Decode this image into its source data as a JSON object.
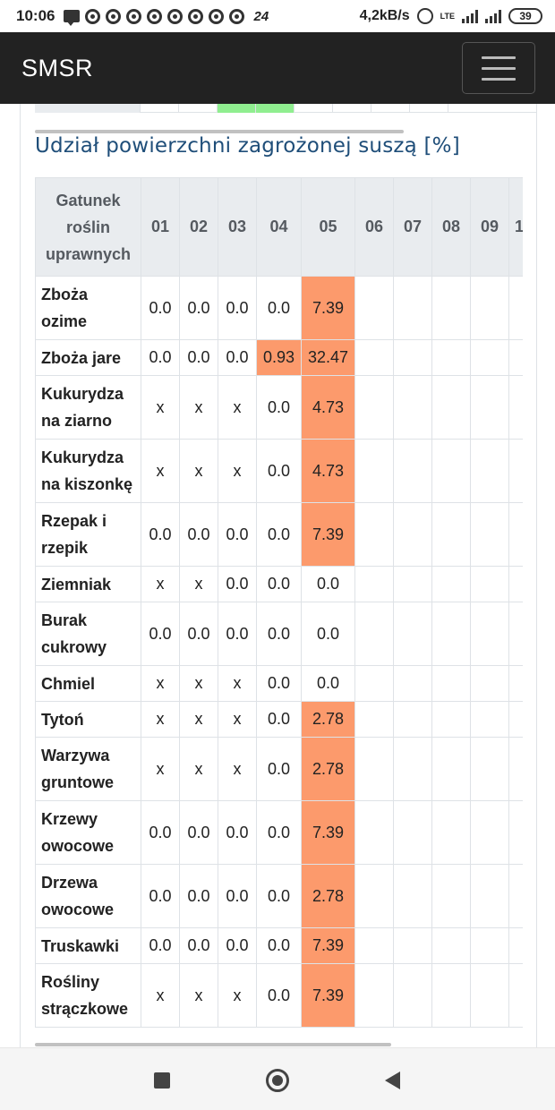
{
  "status_bar": {
    "time": "10:06",
    "notification_count": "24",
    "network_speed": "4,2kB/s",
    "network_type": "LTE",
    "battery": "39"
  },
  "navbar": {
    "brand": "SMSR"
  },
  "section": {
    "title": "Udział powierzchni zagrożonej suszą [%]"
  },
  "colors": {
    "navbar_bg": "#222222",
    "title": "#1f4e79",
    "highlight_drought": "#fc9a6c",
    "header_bg": "#e9ecef"
  },
  "table": {
    "crop_header": [
      "Gatunek",
      "roślin",
      "uprawnych"
    ],
    "months": [
      "01",
      "02",
      "03",
      "04",
      "05",
      "06",
      "07",
      "08",
      "09",
      "1"
    ],
    "rows": [
      {
        "crop": "Zboża ozime",
        "values": [
          "0.0",
          "0.0",
          "0.0",
          "0.0",
          "7.39",
          "",
          "",
          "",
          "",
          ""
        ],
        "highlight": [
          4
        ]
      },
      {
        "crop": "Zboża jare",
        "values": [
          "0.0",
          "0.0",
          "0.0",
          "0.93",
          "32.47",
          "",
          "",
          "",
          "",
          ""
        ],
        "highlight": [
          3,
          4
        ]
      },
      {
        "crop": "Kukurydza na ziarno",
        "values": [
          "x",
          "x",
          "x",
          "0.0",
          "4.73",
          "",
          "",
          "",
          "",
          ""
        ],
        "highlight": [
          4
        ]
      },
      {
        "crop": "Kukurydza na kiszonkę",
        "values": [
          "x",
          "x",
          "x",
          "0.0",
          "4.73",
          "",
          "",
          "",
          "",
          ""
        ],
        "highlight": [
          4
        ]
      },
      {
        "crop": "Rzepak i rzepik",
        "values": [
          "0.0",
          "0.0",
          "0.0",
          "0.0",
          "7.39",
          "",
          "",
          "",
          "",
          ""
        ],
        "highlight": [
          4
        ]
      },
      {
        "crop": "Ziemniak",
        "values": [
          "x",
          "x",
          "0.0",
          "0.0",
          "0.0",
          "",
          "",
          "",
          "",
          ""
        ],
        "highlight": []
      },
      {
        "crop": "Burak cukrowy",
        "values": [
          "0.0",
          "0.0",
          "0.0",
          "0.0",
          "0.0",
          "",
          "",
          "",
          "",
          ""
        ],
        "highlight": []
      },
      {
        "crop": "Chmiel",
        "values": [
          "x",
          "x",
          "x",
          "0.0",
          "0.0",
          "",
          "",
          "",
          "",
          ""
        ],
        "highlight": []
      },
      {
        "crop": "Tytoń",
        "values": [
          "x",
          "x",
          "x",
          "0.0",
          "2.78",
          "",
          "",
          "",
          "",
          ""
        ],
        "highlight": [
          4
        ]
      },
      {
        "crop": "Warzywa gruntowe",
        "values": [
          "x",
          "x",
          "x",
          "0.0",
          "2.78",
          "",
          "",
          "",
          "",
          ""
        ],
        "highlight": [
          4
        ]
      },
      {
        "crop": "Krzewy owocowe",
        "values": [
          "0.0",
          "0.0",
          "0.0",
          "0.0",
          "7.39",
          "",
          "",
          "",
          "",
          ""
        ],
        "highlight": [
          4
        ]
      },
      {
        "crop": "Drzewa owocowe",
        "values": [
          "0.0",
          "0.0",
          "0.0",
          "0.0",
          "2.78",
          "",
          "",
          "",
          "",
          ""
        ],
        "highlight": [
          4
        ]
      },
      {
        "crop": "Truskawki",
        "values": [
          "0.0",
          "0.0",
          "0.0",
          "0.0",
          "7.39",
          "",
          "",
          "",
          "",
          ""
        ],
        "highlight": [
          4
        ]
      },
      {
        "crop": "Rośliny strączkowe",
        "values": [
          "x",
          "x",
          "x",
          "0.0",
          "7.39",
          "",
          "",
          "",
          "",
          ""
        ],
        "highlight": [
          4
        ]
      }
    ]
  }
}
